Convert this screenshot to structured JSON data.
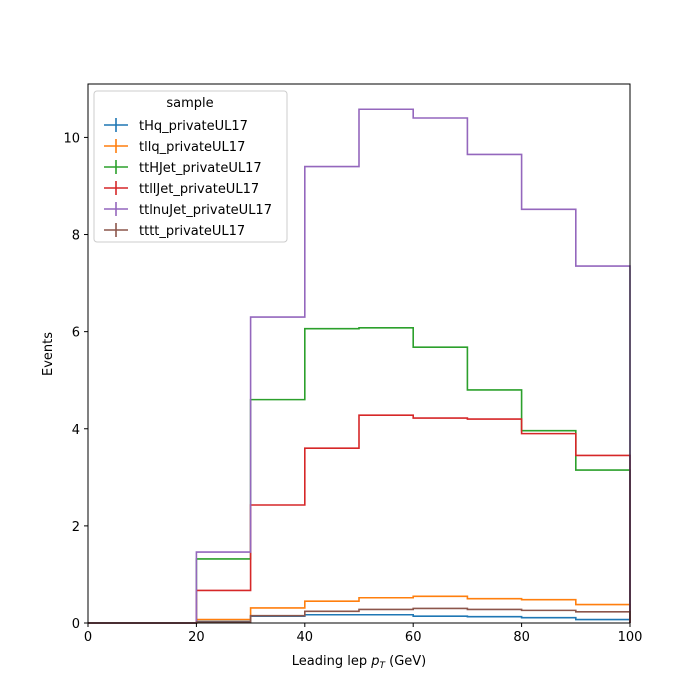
{
  "chart_data": {
    "type": "line",
    "style": "step-histogram",
    "xlabel_main": "Leading lep ",
    "xlabel_sym": "p",
    "xlabel_sub": "T",
    "xlabel_unit": " (GeV)",
    "ylabel": "Events",
    "xlim": [
      0,
      100
    ],
    "ylim": [
      0,
      11.1
    ],
    "xticks": [
      0,
      20,
      40,
      60,
      80,
      100
    ],
    "yticks": [
      0,
      2,
      4,
      6,
      8,
      10
    ],
    "grid": false,
    "legend": {
      "title": "sample",
      "placement": "top-left"
    },
    "bin_edges": [
      0,
      10,
      20,
      30,
      40,
      50,
      60,
      70,
      80,
      90,
      100
    ],
    "series": [
      {
        "name": "tHq_privateUL17",
        "color": "#1f77b4",
        "values": [
          0,
          0,
          0.03,
          0.14,
          0.17,
          0.17,
          0.14,
          0.13,
          0.11,
          0.07
        ]
      },
      {
        "name": "tllq_privateUL17",
        "color": "#ff7f0e",
        "values": [
          0,
          0,
          0.07,
          0.31,
          0.45,
          0.52,
          0.55,
          0.5,
          0.48,
          0.38
        ]
      },
      {
        "name": "ttHJet_privateUL17",
        "color": "#2ca02c",
        "values": [
          0,
          0,
          1.32,
          4.6,
          6.06,
          6.08,
          5.68,
          4.8,
          3.96,
          3.15
        ]
      },
      {
        "name": "ttllJet_privateUL17",
        "color": "#d62728",
        "values": [
          0,
          0,
          0.67,
          2.43,
          3.6,
          4.28,
          4.22,
          4.2,
          3.9,
          3.45
        ]
      },
      {
        "name": "ttlnuJet_privateUL17",
        "color": "#9467bd",
        "values": [
          0,
          0,
          1.46,
          6.3,
          9.4,
          10.58,
          10.4,
          9.65,
          8.52,
          7.35
        ]
      },
      {
        "name": "tttt_privateUL17",
        "color": "#8c564b",
        "values": [
          0,
          0,
          0.02,
          0.15,
          0.24,
          0.28,
          0.3,
          0.28,
          0.26,
          0.23
        ]
      }
    ]
  }
}
